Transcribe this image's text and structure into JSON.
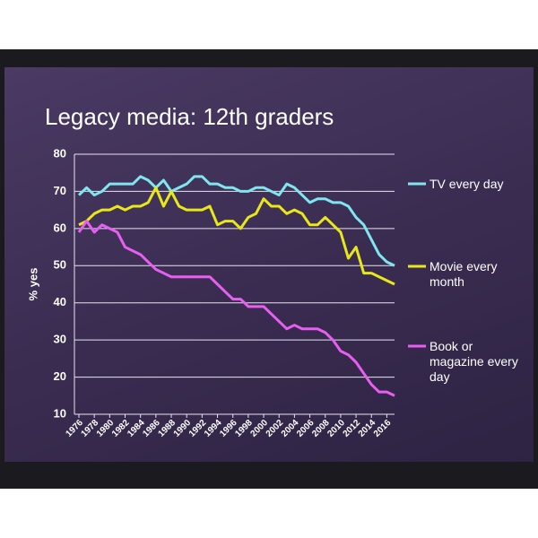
{
  "chart_data": {
    "type": "line",
    "title": "Legacy media: 12th graders",
    "y_label": "% yes",
    "x": [
      1976,
      1977,
      1978,
      1979,
      1980,
      1981,
      1982,
      1983,
      1984,
      1985,
      1986,
      1987,
      1988,
      1989,
      1990,
      1991,
      1992,
      1993,
      1994,
      1995,
      1996,
      1997,
      1998,
      1999,
      2000,
      2001,
      2002,
      2003,
      2004,
      2005,
      2006,
      2007,
      2008,
      2009,
      2010,
      2011,
      2012,
      2013,
      2014,
      2015,
      2016,
      2017
    ],
    "series": [
      {
        "name": "TV every day",
        "color": "#7fe6f0",
        "values": [
          69,
          71,
          69,
          70,
          72,
          72,
          72,
          72,
          74,
          73,
          71,
          73,
          70,
          71,
          72,
          74,
          74,
          72,
          72,
          71,
          71,
          70,
          70,
          71,
          71,
          70,
          69,
          72,
          71,
          69,
          67,
          68,
          68,
          67,
          67,
          66,
          63,
          61,
          57,
          53,
          51,
          50
        ]
      },
      {
        "name": "Movie every month",
        "color": "#e8e818",
        "values": [
          61,
          62,
          64,
          65,
          65,
          66,
          65,
          66,
          66,
          67,
          71,
          66,
          70,
          66,
          65,
          65,
          65,
          66,
          61,
          62,
          62,
          60,
          63,
          64,
          68,
          66,
          66,
          64,
          65,
          64,
          61,
          61,
          63,
          61,
          59,
          52,
          55,
          48,
          48,
          47,
          46,
          45
        ]
      },
      {
        "name": "Book or magazine every day",
        "color": "#e85ef0",
        "values": [
          59,
          62,
          59,
          61,
          60,
          59,
          55,
          54,
          53,
          51,
          49,
          48,
          47,
          47,
          47,
          47,
          47,
          47,
          45,
          43,
          41,
          41,
          39,
          39,
          39,
          37,
          35,
          33,
          34,
          33,
          33,
          33,
          32,
          30,
          27,
          26,
          24,
          21,
          18,
          16,
          16,
          15
        ]
      }
    ],
    "xlim": [
      1976,
      2017
    ],
    "xticks": [
      1976,
      1978,
      1980,
      1982,
      1984,
      1986,
      1988,
      1990,
      1992,
      1994,
      1996,
      1998,
      2000,
      2002,
      2004,
      2006,
      2008,
      2010,
      2012,
      2014,
      2016
    ],
    "ylim": [
      10,
      80
    ],
    "yticks": [
      10,
      20,
      30,
      40,
      50,
      60,
      70,
      80
    ],
    "grid": true
  }
}
